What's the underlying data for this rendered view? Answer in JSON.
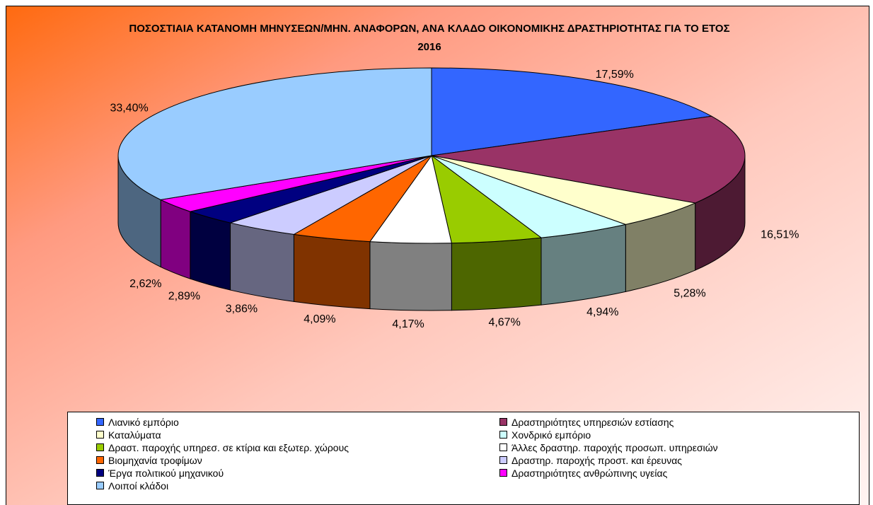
{
  "chart_data": {
    "type": "pie3d",
    "title": "ΠΟΣΟΣΤΙΑΙΑ ΚΑΤΑΝΟΜΗ ΜΗΝΥΣΕΩΝ/ΜΗΝ. ΑΝΑΦΟΡΩΝ, ΑΝΑ ΚΛΑΔΟ ΟΙΚΟΝΟΜΙΚΗΣ ΔΡΑΣΤΗΡΙΟΤΗΤΑΣ ΓΙΑ ΤΟ ΕΤΟΣ 2016",
    "categories": [
      "Λιανικό εμπόριο",
      "Δραστηριότητες υπηρεσιών εστίασης",
      "Καταλύματα",
      "Χονδρικό εμπόριο",
      "Δραστ. παροχής υπηρεσ. σε κτίρια και εξωτερ. χώρους",
      "Άλλες δραστηρ. παροχής προσωπ. υπηρεσιών",
      "Βιομηχανία τροφίμων",
      "Δραστηρ. παροχής προστ. και έρευνας",
      "Έργα πολιτικού μηχανικού",
      "Δραστηριότητες ανθρώπινης υγείας",
      "Λοιποί κλάδοι"
    ],
    "values": [
      17.59,
      16.51,
      5.28,
      4.94,
      4.67,
      4.17,
      4.09,
      3.86,
      2.89,
      2.62,
      33.4
    ],
    "value_labels": [
      "17,59%",
      "16,51%",
      "5,28%",
      "4,94%",
      "4,67%",
      "4,17%",
      "4,09%",
      "3,86%",
      "2,89%",
      "2,62%",
      "33,40%"
    ],
    "colors": [
      "#3366ff",
      "#993366",
      "#ffffcc",
      "#ccffff",
      "#99cc00",
      "#ffffff",
      "#ff6600",
      "#ccccff",
      "#000080",
      "#ff00ff",
      "#99ccff"
    ],
    "legend": "bottom"
  }
}
